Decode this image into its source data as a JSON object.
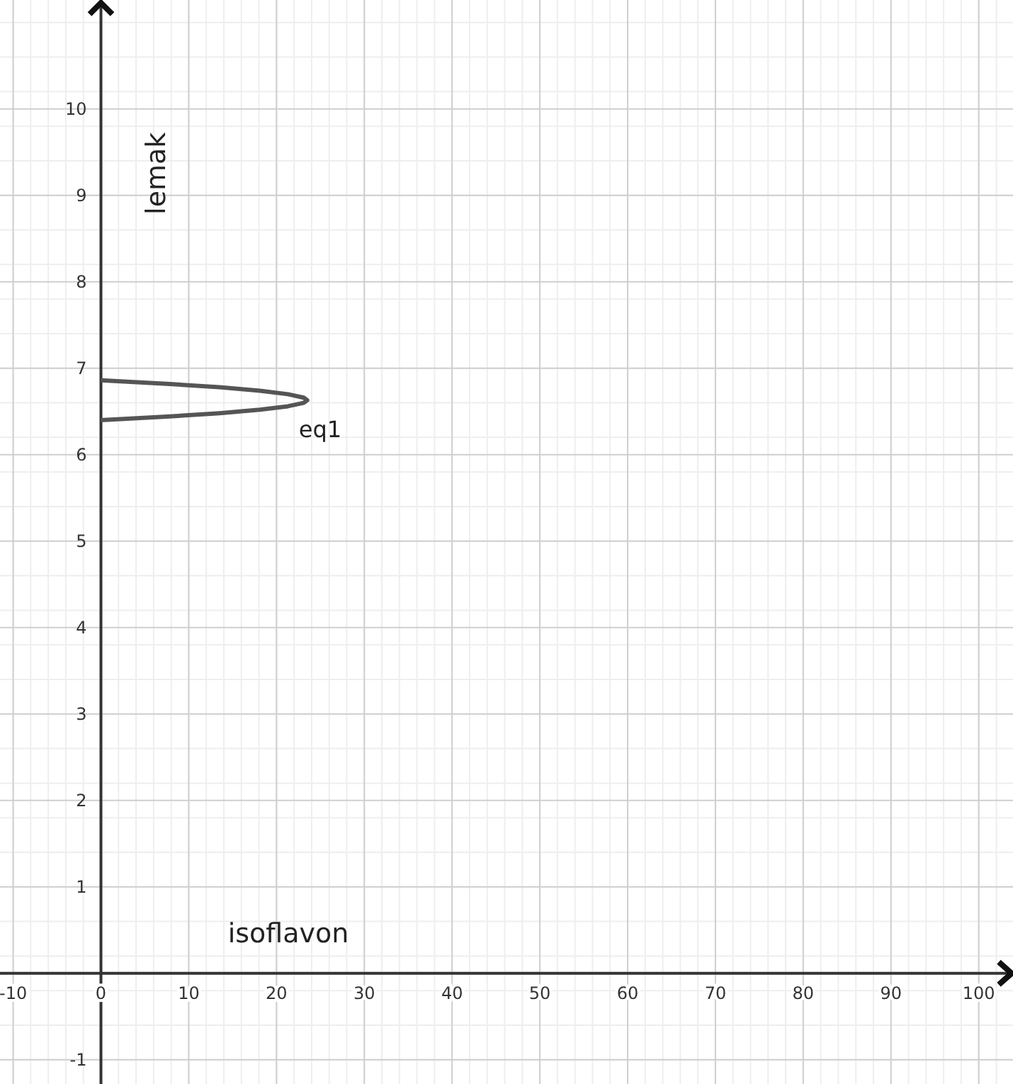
{
  "chart_data": {
    "type": "line",
    "xlabel": "isoflavon",
    "ylabel": "lemak",
    "xlim": [
      -11.5,
      103.9
    ],
    "ylim": [
      -1.28,
      11.26
    ],
    "xticks": [
      -10,
      0,
      10,
      20,
      30,
      40,
      50,
      60,
      70,
      80,
      90,
      100
    ],
    "yticks": [
      -1,
      1,
      2,
      3,
      4,
      5,
      6,
      7,
      8,
      9,
      10
    ],
    "grid": true,
    "marker": "none",
    "line_style": "solid",
    "series": [
      {
        "name": "eq1",
        "color": "#555555",
        "x": [
          0,
          7.5,
          13.5,
          18.1,
          21.3,
          23.1,
          23.5,
          23.1,
          21.3,
          18.1,
          13.5,
          7.5,
          0
        ],
        "values": [
          6.86,
          6.82,
          6.78,
          6.74,
          6.7,
          6.66,
          6.63,
          6.6,
          6.56,
          6.52,
          6.48,
          6.44,
          6.4
        ]
      }
    ]
  }
}
